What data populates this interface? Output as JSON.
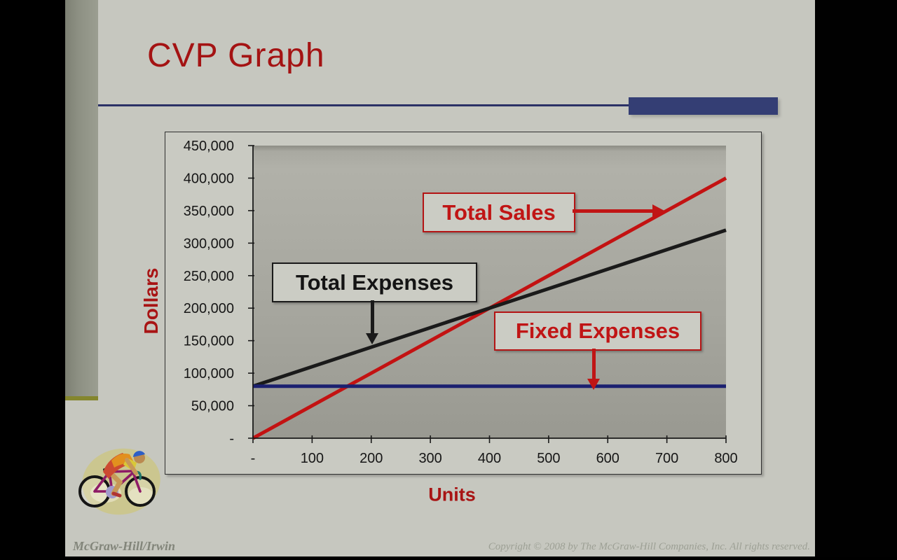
{
  "slide": {
    "title": "CVP Graph",
    "footer_left": "McGraw-Hill/Irwin",
    "footer_right": "Copyright © 2008 by The McGraw-Hill Companies, Inc. All rights reserved."
  },
  "colors": {
    "title_red": "#a41313",
    "separator_line_navy": "#2b3166",
    "accent_bar_navy": "#343e74",
    "slide_background": "#c6c7bf",
    "plot_background_gray": "#a6a69e",
    "stripe_olive_edge": "#84862e",
    "sales_red": "#c31212",
    "expenses_black": "#1a1a1a",
    "fixed_navy": "#1b2070"
  },
  "chart_data": {
    "type": "line",
    "title": "",
    "xlabel": "Units",
    "ylabel": "Dollars",
    "xlim": [
      0,
      800
    ],
    "ylim": [
      0,
      450000
    ],
    "grid": false,
    "legend_position": "none",
    "x_ticks": {
      "values": [
        0,
        100,
        200,
        300,
        400,
        500,
        600,
        700,
        800
      ],
      "labels": [
        "-",
        "100",
        "200",
        "300",
        "400",
        "500",
        "600",
        "700",
        "800"
      ]
    },
    "y_ticks": {
      "values": [
        0,
        50000,
        100000,
        150000,
        200000,
        250000,
        300000,
        350000,
        400000,
        450000
      ],
      "labels": [
        "-",
        "50,000",
        "100,000",
        "150,000",
        "200,000",
        "250,000",
        "300,000",
        "350,000",
        "400,000",
        "450,000"
      ]
    },
    "series": [
      {
        "name": "Total Sales",
        "color": "#c31212",
        "stroke_width": 5,
        "points": [
          [
            0,
            0
          ],
          [
            800,
            400000
          ]
        ]
      },
      {
        "name": "Total Expenses",
        "color": "#1a1a1a",
        "stroke_width": 5,
        "points": [
          [
            0,
            80000
          ],
          [
            800,
            320000
          ]
        ]
      },
      {
        "name": "Fixed Expenses",
        "color": "#1b2070",
        "stroke_width": 5,
        "points": [
          [
            0,
            80000
          ],
          [
            800,
            80000
          ]
        ]
      }
    ],
    "annotations": [
      {
        "label": "Total Sales",
        "color": "#c01515"
      },
      {
        "label": "Total Expenses",
        "color": "#141414"
      },
      {
        "label": "Fixed Expenses",
        "color": "#c01515"
      }
    ]
  }
}
